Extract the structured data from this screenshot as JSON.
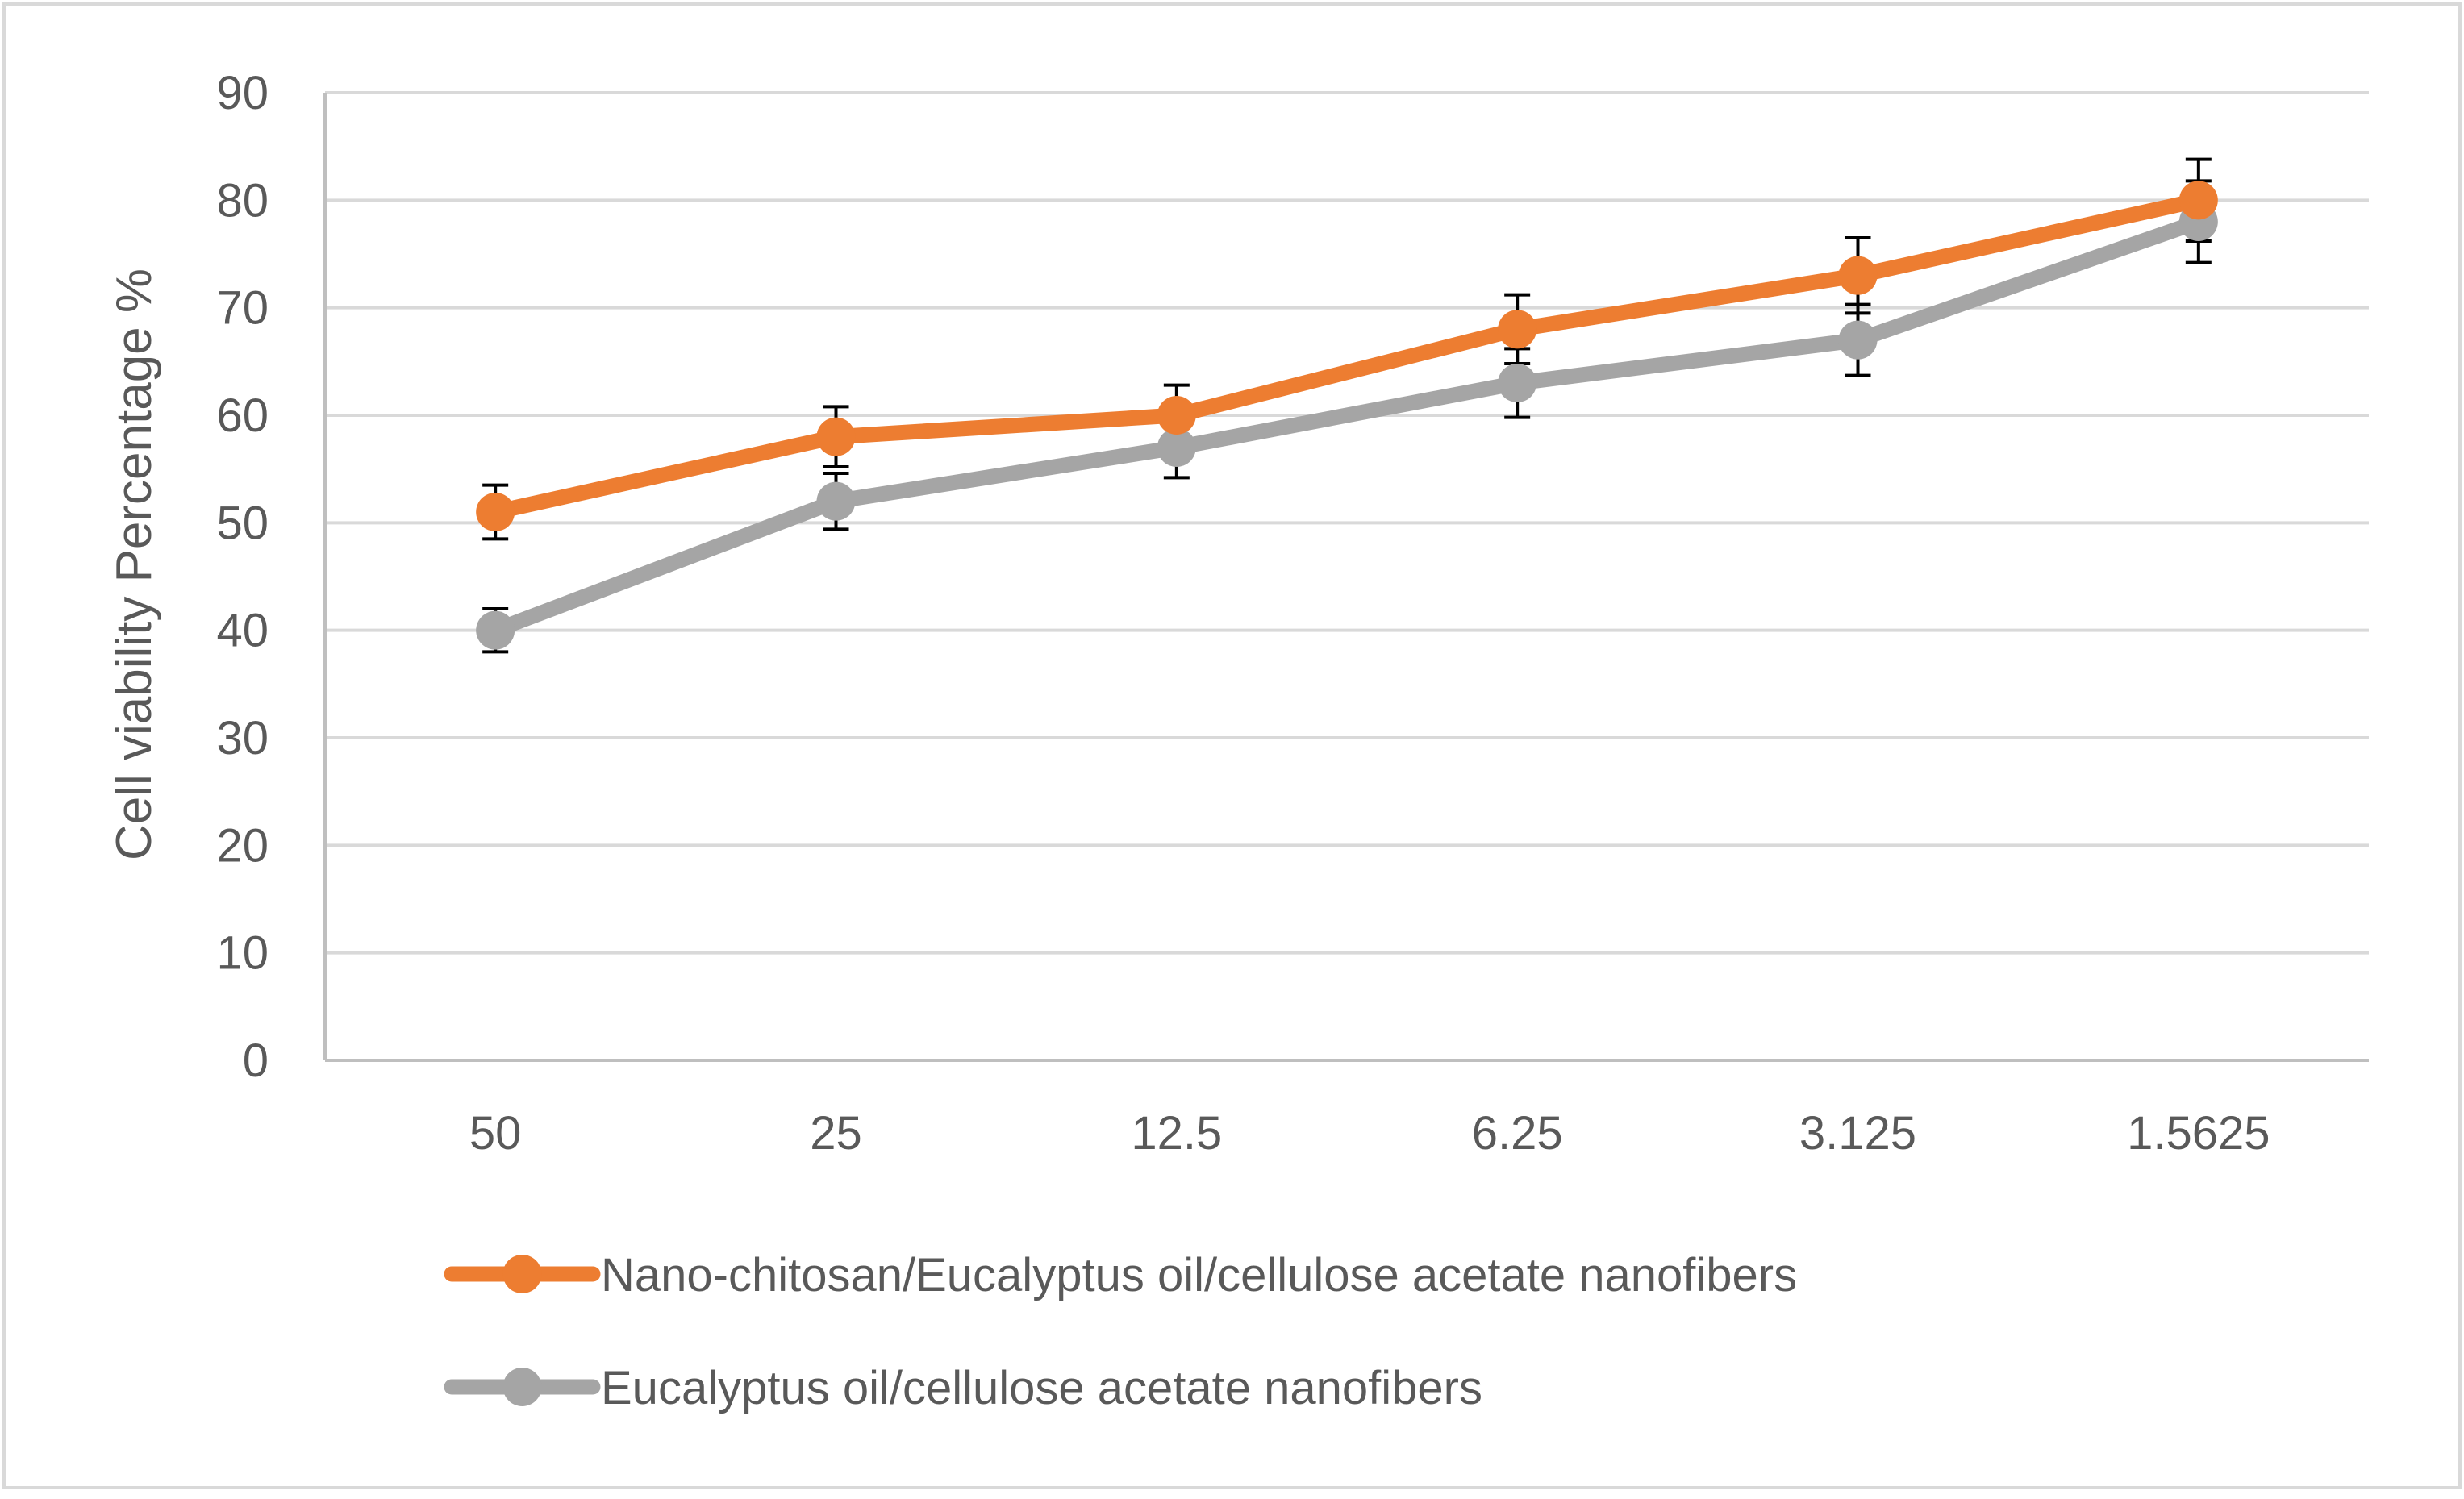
{
  "chart_data": {
    "type": "line",
    "title": "",
    "xlabel": "",
    "ylabel": "Cell viability Percentage %",
    "categories": [
      "50",
      "25",
      "12.5",
      "6.25",
      "3.125",
      "1.5625"
    ],
    "ylim": [
      0,
      90
    ],
    "yticks": [
      0,
      10,
      20,
      30,
      40,
      50,
      60,
      70,
      80,
      90
    ],
    "grid": true,
    "legend_position": "bottom",
    "series": [
      {
        "name": "Nano-chitosan/Eucalyptus oil/cellulose acetate nanofibers",
        "color": "#ED7D31",
        "values": [
          51,
          58,
          60,
          68,
          73,
          80
        ],
        "errors": [
          2.5,
          2.8,
          2.8,
          3.2,
          3.5,
          3.8
        ]
      },
      {
        "name": "Eucalyptus oil/cellulose acetate nanofibers",
        "color": "#A5A5A5",
        "values": [
          40,
          52,
          57,
          63,
          67,
          78
        ],
        "errors": [
          2.0,
          2.6,
          2.8,
          3.2,
          3.3,
          3.8
        ]
      }
    ]
  },
  "colors": {
    "axis": "#BFBFBF",
    "grid": "#D9D9D9",
    "text": "#595959",
    "error_bar": "#000000",
    "border": "#D9D9D9"
  }
}
